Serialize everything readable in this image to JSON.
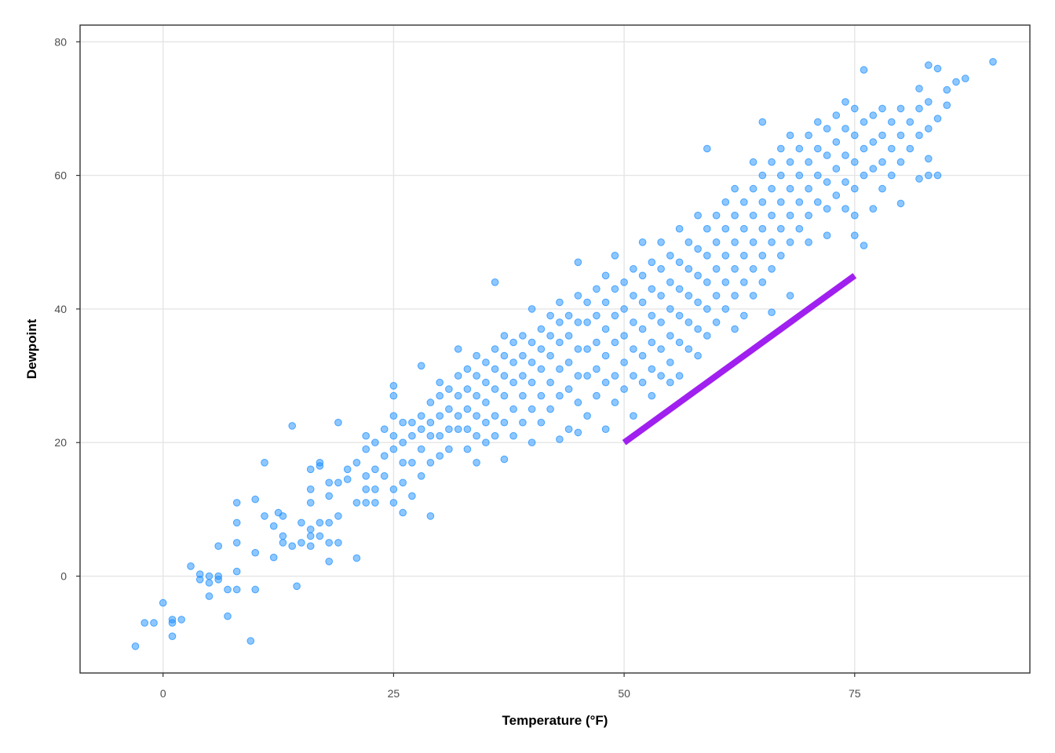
{
  "chart_data": {
    "type": "scatter",
    "title": "",
    "xlabel": "Temperature (°F)",
    "ylabel": "Dewpoint",
    "xlim": [
      -9,
      94
    ],
    "ylim": [
      -14.5,
      82.5
    ],
    "x_ticks": [
      0,
      25,
      50,
      75
    ],
    "y_ticks": [
      0,
      20,
      40,
      60,
      80
    ],
    "grid": true,
    "legend": "none",
    "point_color": "#1E90FF",
    "line_color": "#A020F0",
    "segment": {
      "x": [
        50,
        75
      ],
      "y": [
        20,
        45
      ]
    },
    "points": [
      [
        -3,
        -10.5
      ],
      [
        -2,
        -7
      ],
      [
        -1,
        -7
      ],
      [
        0,
        -4
      ],
      [
        1,
        -6.5
      ],
      [
        1,
        -7
      ],
      [
        2,
        -6.5
      ],
      [
        1,
        -9
      ],
      [
        3,
        1.5
      ],
      [
        4,
        -0.5
      ],
      [
        4,
        0.3
      ],
      [
        5,
        -1
      ],
      [
        5,
        -3
      ],
      [
        5,
        0
      ],
      [
        6,
        0
      ],
      [
        6,
        -0.5
      ],
      [
        6,
        4.5
      ],
      [
        7,
        -2
      ],
      [
        7,
        -6
      ],
      [
        8,
        -2
      ],
      [
        8,
        0.7
      ],
      [
        8,
        5
      ],
      [
        8,
        8
      ],
      [
        8,
        11
      ],
      [
        9.5,
        -9.7
      ],
      [
        10,
        -2
      ],
      [
        10,
        3.5
      ],
      [
        10,
        11.5
      ],
      [
        11,
        9
      ],
      [
        11,
        17
      ],
      [
        12,
        2.8
      ],
      [
        12,
        7.5
      ],
      [
        12.5,
        9.5
      ],
      [
        13,
        5
      ],
      [
        13,
        6
      ],
      [
        13,
        9
      ],
      [
        14,
        4.5
      ],
      [
        14,
        22.5
      ],
      [
        14.5,
        -1.5
      ],
      [
        15,
        5
      ],
      [
        15,
        8
      ],
      [
        16,
        4.5
      ],
      [
        16,
        6
      ],
      [
        16,
        7
      ],
      [
        16,
        11
      ],
      [
        16,
        13
      ],
      [
        16,
        16
      ],
      [
        17,
        8
      ],
      [
        17,
        6
      ],
      [
        17,
        16.5
      ],
      [
        17,
        17
      ],
      [
        18,
        2.2
      ],
      [
        18,
        5
      ],
      [
        18,
        8
      ],
      [
        18,
        12
      ],
      [
        18,
        14
      ],
      [
        19,
        5
      ],
      [
        19,
        9
      ],
      [
        19,
        14
      ],
      [
        19,
        23
      ],
      [
        20,
        14.5
      ],
      [
        20,
        16
      ],
      [
        21,
        2.7
      ],
      [
        21,
        11
      ],
      [
        21,
        17
      ],
      [
        22,
        11
      ],
      [
        22,
        13
      ],
      [
        22,
        15
      ],
      [
        22,
        19
      ],
      [
        22,
        21
      ],
      [
        23,
        11
      ],
      [
        23,
        13
      ],
      [
        23,
        16
      ],
      [
        23,
        20
      ],
      [
        24,
        15
      ],
      [
        24,
        18
      ],
      [
        24,
        22
      ],
      [
        25,
        11
      ],
      [
        25,
        13
      ],
      [
        25,
        19
      ],
      [
        25,
        21
      ],
      [
        25,
        24
      ],
      [
        25,
        27
      ],
      [
        25,
        28.5
      ],
      [
        26,
        9.5
      ],
      [
        26,
        14
      ],
      [
        26,
        17
      ],
      [
        26,
        20
      ],
      [
        26,
        23
      ],
      [
        27,
        12
      ],
      [
        27,
        17
      ],
      [
        27,
        21
      ],
      [
        27,
        23
      ],
      [
        28,
        15
      ],
      [
        28,
        19
      ],
      [
        28,
        22
      ],
      [
        28,
        24
      ],
      [
        28,
        31.5
      ],
      [
        29,
        9
      ],
      [
        29,
        17
      ],
      [
        29,
        21
      ],
      [
        29,
        23
      ],
      [
        29,
        26
      ],
      [
        30,
        18
      ],
      [
        30,
        21
      ],
      [
        30,
        24
      ],
      [
        30,
        27
      ],
      [
        30,
        29
      ],
      [
        31,
        19
      ],
      [
        31,
        22
      ],
      [
        31,
        25
      ],
      [
        31,
        28
      ],
      [
        32,
        22
      ],
      [
        32,
        24
      ],
      [
        32,
        27
      ],
      [
        32,
        30
      ],
      [
        32,
        34
      ],
      [
        33,
        19
      ],
      [
        33,
        22
      ],
      [
        33,
        25
      ],
      [
        33,
        28
      ],
      [
        33,
        31
      ],
      [
        34,
        17
      ],
      [
        34,
        21
      ],
      [
        34,
        24
      ],
      [
        34,
        27
      ],
      [
        34,
        30
      ],
      [
        34,
        33
      ],
      [
        35,
        20
      ],
      [
        35,
        23
      ],
      [
        35,
        26
      ],
      [
        35,
        29
      ],
      [
        35,
        32
      ],
      [
        36,
        21
      ],
      [
        36,
        24
      ],
      [
        36,
        28
      ],
      [
        36,
        31
      ],
      [
        36,
        34
      ],
      [
        36,
        44
      ],
      [
        37,
        17.5
      ],
      [
        37,
        23
      ],
      [
        37,
        27
      ],
      [
        37,
        30
      ],
      [
        37,
        33
      ],
      [
        37,
        36
      ],
      [
        38,
        21
      ],
      [
        38,
        25
      ],
      [
        38,
        29
      ],
      [
        38,
        32
      ],
      [
        38,
        35
      ],
      [
        39,
        23
      ],
      [
        39,
        27
      ],
      [
        39,
        30
      ],
      [
        39,
        33
      ],
      [
        39,
        36
      ],
      [
        40,
        20
      ],
      [
        40,
        25
      ],
      [
        40,
        29
      ],
      [
        40,
        32
      ],
      [
        40,
        35
      ],
      [
        40,
        40
      ],
      [
        41,
        23
      ],
      [
        41,
        27
      ],
      [
        41,
        31
      ],
      [
        41,
        34
      ],
      [
        41,
        37
      ],
      [
        42,
        25
      ],
      [
        42,
        29
      ],
      [
        42,
        33
      ],
      [
        42,
        36
      ],
      [
        42,
        39
      ],
      [
        43,
        20.5
      ],
      [
        43,
        27
      ],
      [
        43,
        31
      ],
      [
        43,
        35
      ],
      [
        43,
        38
      ],
      [
        43,
        41
      ],
      [
        44,
        22
      ],
      [
        44,
        28
      ],
      [
        44,
        32
      ],
      [
        44,
        36
      ],
      [
        44,
        39
      ],
      [
        45,
        21.5
      ],
      [
        45,
        26
      ],
      [
        45,
        30
      ],
      [
        45,
        34
      ],
      [
        45,
        38
      ],
      [
        45,
        42
      ],
      [
        45,
        47
      ],
      [
        46,
        24
      ],
      [
        46,
        30
      ],
      [
        46,
        34
      ],
      [
        46,
        38
      ],
      [
        46,
        41
      ],
      [
        47,
        27
      ],
      [
        47,
        31
      ],
      [
        47,
        35
      ],
      [
        47,
        39
      ],
      [
        47,
        43
      ],
      [
        48,
        22
      ],
      [
        48,
        29
      ],
      [
        48,
        33
      ],
      [
        48,
        37
      ],
      [
        48,
        41
      ],
      [
        48,
        45
      ],
      [
        49,
        26
      ],
      [
        49,
        30
      ],
      [
        49,
        35
      ],
      [
        49,
        39
      ],
      [
        49,
        43
      ],
      [
        49,
        48
      ],
      [
        50,
        28
      ],
      [
        50,
        32
      ],
      [
        50,
        36
      ],
      [
        50,
        40
      ],
      [
        50,
        44
      ],
      [
        51,
        24
      ],
      [
        51,
        30
      ],
      [
        51,
        34
      ],
      [
        51,
        38
      ],
      [
        51,
        42
      ],
      [
        51,
        46
      ],
      [
        52,
        29
      ],
      [
        52,
        33
      ],
      [
        52,
        37
      ],
      [
        52,
        41
      ],
      [
        52,
        45
      ],
      [
        52,
        50
      ],
      [
        53,
        27
      ],
      [
        53,
        31
      ],
      [
        53,
        35
      ],
      [
        53,
        39
      ],
      [
        53,
        43
      ],
      [
        53,
        47
      ],
      [
        54,
        30
      ],
      [
        54,
        34
      ],
      [
        54,
        38
      ],
      [
        54,
        42
      ],
      [
        54,
        46
      ],
      [
        54,
        50
      ],
      [
        55,
        29
      ],
      [
        55,
        32
      ],
      [
        55,
        36
      ],
      [
        55,
        40
      ],
      [
        55,
        44
      ],
      [
        55,
        48
      ],
      [
        56,
        30
      ],
      [
        56,
        35
      ],
      [
        56,
        39
      ],
      [
        56,
        43
      ],
      [
        56,
        47
      ],
      [
        56,
        52
      ],
      [
        57,
        34
      ],
      [
        57,
        38
      ],
      [
        57,
        42
      ],
      [
        57,
        46
      ],
      [
        57,
        50
      ],
      [
        58,
        33
      ],
      [
        58,
        37
      ],
      [
        58,
        41
      ],
      [
        58,
        45
      ],
      [
        58,
        49
      ],
      [
        58,
        54
      ],
      [
        59,
        36
      ],
      [
        59,
        40
      ],
      [
        59,
        44
      ],
      [
        59,
        48
      ],
      [
        59,
        52
      ],
      [
        59,
        64
      ],
      [
        60,
        38
      ],
      [
        60,
        42
      ],
      [
        60,
        46
      ],
      [
        60,
        50
      ],
      [
        60,
        54
      ],
      [
        61,
        40
      ],
      [
        61,
        44
      ],
      [
        61,
        48
      ],
      [
        61,
        52
      ],
      [
        61,
        56
      ],
      [
        62,
        37
      ],
      [
        62,
        42
      ],
      [
        62,
        46
      ],
      [
        62,
        50
      ],
      [
        62,
        54
      ],
      [
        62,
        58
      ],
      [
        63,
        39
      ],
      [
        63,
        44
      ],
      [
        63,
        48
      ],
      [
        63,
        52
      ],
      [
        63,
        56
      ],
      [
        64,
        42
      ],
      [
        64,
        46
      ],
      [
        64,
        50
      ],
      [
        64,
        54
      ],
      [
        64,
        58
      ],
      [
        64,
        62
      ],
      [
        65,
        44
      ],
      [
        65,
        48
      ],
      [
        65,
        52
      ],
      [
        65,
        56
      ],
      [
        65,
        60
      ],
      [
        65,
        68
      ],
      [
        66,
        39.5
      ],
      [
        66,
        46
      ],
      [
        66,
        50
      ],
      [
        66,
        54
      ],
      [
        66,
        58
      ],
      [
        66,
        62
      ],
      [
        67,
        48
      ],
      [
        67,
        52
      ],
      [
        67,
        56
      ],
      [
        67,
        60
      ],
      [
        67,
        64
      ],
      [
        68,
        42
      ],
      [
        68,
        50
      ],
      [
        68,
        54
      ],
      [
        68,
        58
      ],
      [
        68,
        62
      ],
      [
        68,
        66
      ],
      [
        69,
        52
      ],
      [
        69,
        56
      ],
      [
        69,
        60
      ],
      [
        69,
        64
      ],
      [
        70,
        50
      ],
      [
        70,
        54
      ],
      [
        70,
        58
      ],
      [
        70,
        62
      ],
      [
        70,
        66
      ],
      [
        71,
        56
      ],
      [
        71,
        60
      ],
      [
        71,
        64
      ],
      [
        71,
        68
      ],
      [
        72,
        51
      ],
      [
        72,
        55
      ],
      [
        72,
        59
      ],
      [
        72,
        63
      ],
      [
        72,
        67
      ],
      [
        73,
        57
      ],
      [
        73,
        61
      ],
      [
        73,
        65
      ],
      [
        73,
        69
      ],
      [
        74,
        55
      ],
      [
        74,
        59
      ],
      [
        74,
        63
      ],
      [
        74,
        67
      ],
      [
        74,
        71
      ],
      [
        75,
        51
      ],
      [
        75,
        54
      ],
      [
        75,
        58
      ],
      [
        75,
        62
      ],
      [
        75,
        66
      ],
      [
        75,
        70
      ],
      [
        76,
        49.5
      ],
      [
        76,
        60
      ],
      [
        76,
        64
      ],
      [
        76,
        68
      ],
      [
        76,
        75.8
      ],
      [
        77,
        55
      ],
      [
        77,
        61
      ],
      [
        77,
        65
      ],
      [
        77,
        69
      ],
      [
        78,
        58
      ],
      [
        78,
        62
      ],
      [
        78,
        66
      ],
      [
        78,
        70
      ],
      [
        79,
        60
      ],
      [
        79,
        64
      ],
      [
        79,
        68
      ],
      [
        80,
        55.8
      ],
      [
        80,
        62
      ],
      [
        80,
        66
      ],
      [
        80,
        70
      ],
      [
        81,
        64
      ],
      [
        81,
        68
      ],
      [
        82,
        59.5
      ],
      [
        82,
        66
      ],
      [
        82,
        70
      ],
      [
        82,
        73
      ],
      [
        83,
        60
      ],
      [
        83,
        62.5
      ],
      [
        83,
        67
      ],
      [
        83,
        71
      ],
      [
        83,
        76.5
      ],
      [
        84,
        60
      ],
      [
        84,
        68.5
      ],
      [
        84,
        76
      ],
      [
        85,
        72.8
      ],
      [
        85,
        70.5
      ],
      [
        86,
        74
      ],
      [
        87,
        74.5
      ],
      [
        90,
        77
      ]
    ]
  }
}
